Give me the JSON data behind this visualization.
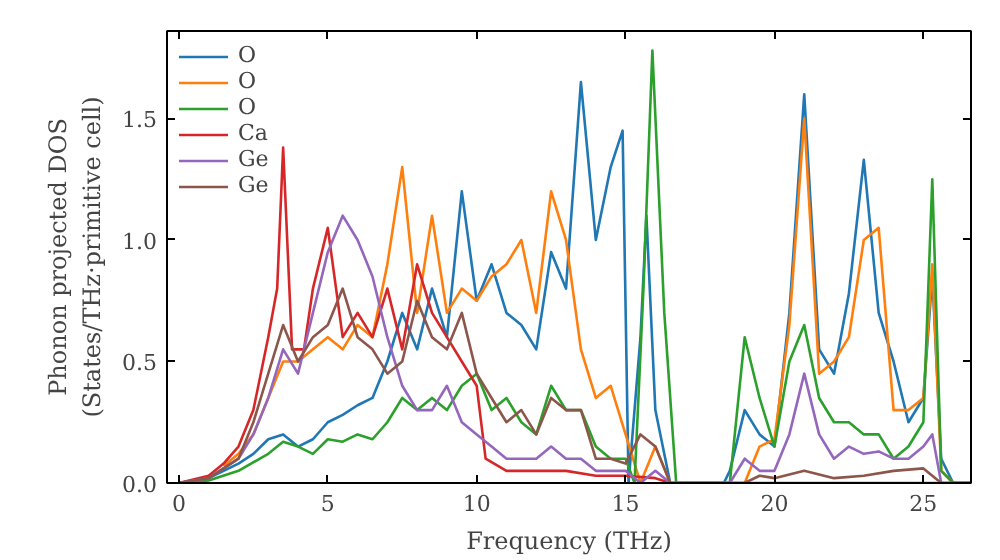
{
  "chart_data": {
    "type": "line",
    "xlabel": "Frequency (THz)",
    "ylabel": "Phonon projected DOS\n(States/THz·primitive cell)",
    "xlim": [
      -0.4,
      26.6
    ],
    "ylim": [
      0,
      1.86
    ],
    "xticks": [
      0,
      5,
      10,
      15,
      20,
      25
    ],
    "yticks": [
      {
        "value": 0,
        "label": "0.0"
      },
      {
        "value": 0.5,
        "label": "0.5"
      },
      {
        "value": 1,
        "label": "1.0"
      },
      {
        "value": 1.5,
        "label": "1.5"
      }
    ],
    "grid": false,
    "legend": "top left",
    "marker": "none",
    "line_style": "solid",
    "series": [
      {
        "name": "O",
        "color": "#1f77b4",
        "x": [
          0,
          1,
          2,
          2.5,
          3,
          3.5,
          4,
          4.5,
          5,
          5.5,
          6,
          6.5,
          7,
          7.5,
          8,
          8.5,
          9,
          9.5,
          10,
          10.5,
          11,
          11.5,
          12,
          12.5,
          13,
          13.5,
          14,
          14.5,
          14.9,
          15.1,
          15.5,
          15.7,
          16,
          16.5,
          18.3,
          18.5,
          19,
          19.5,
          20,
          20.5,
          21,
          21.5,
          22,
          22.5,
          23,
          23.5,
          24,
          24.5,
          25,
          25.3,
          25.6,
          26,
          26.6
        ],
        "values": [
          0,
          0.02,
          0.08,
          0.12,
          0.18,
          0.2,
          0.15,
          0.18,
          0.25,
          0.28,
          0.32,
          0.35,
          0.5,
          0.7,
          0.55,
          0.8,
          0.6,
          1.2,
          0.75,
          0.9,
          0.7,
          0.65,
          0.55,
          0.95,
          0.8,
          1.65,
          1.0,
          1.3,
          1.45,
          0,
          0.6,
          1.1,
          0.3,
          0,
          0,
          0.05,
          0.3,
          0.2,
          0.15,
          0.7,
          1.6,
          0.55,
          0.45,
          0.78,
          1.33,
          0.7,
          0.5,
          0.25,
          0.35,
          0.85,
          0.1,
          0,
          0
        ]
      },
      {
        "name": "O",
        "color": "#ff7f0e",
        "x": [
          1.5,
          2,
          2.5,
          3,
          3.5,
          4,
          4.5,
          5,
          5.5,
          6,
          6.5,
          7,
          7.5,
          8,
          8.5,
          9,
          9.5,
          10,
          10.5,
          11,
          11.5,
          12,
          12.5,
          13,
          13.5,
          14,
          14.5,
          15,
          15.5,
          16,
          16.5,
          19,
          19.5,
          20,
          20.5,
          21,
          21.5,
          22,
          22.5,
          23,
          23.5,
          24,
          24.5,
          25,
          25.3,
          25.6,
          26,
          26.6
        ],
        "values": [
          0.07,
          0.12,
          0.2,
          0.35,
          0.5,
          0.5,
          0.55,
          0.6,
          0.55,
          0.65,
          0.6,
          0.9,
          1.3,
          0.7,
          1.1,
          0.7,
          0.8,
          0.75,
          0.85,
          0.9,
          1.0,
          0.7,
          1.2,
          1.0,
          0.55,
          0.35,
          0.4,
          0.2,
          0,
          0.15,
          0,
          0,
          0.15,
          0.18,
          0.65,
          1.5,
          0.45,
          0.5,
          0.6,
          1.0,
          1.05,
          0.3,
          0.3,
          0.35,
          0.9,
          0.05,
          0,
          0
        ]
      },
      {
        "name": "O",
        "color": "#2ca02c",
        "x": [
          0,
          1,
          2,
          3,
          3.5,
          4,
          4.5,
          5,
          5.5,
          6,
          6.5,
          7,
          7.5,
          8,
          8.5,
          9,
          9.5,
          10,
          10.5,
          11,
          11.5,
          12,
          12.5,
          13,
          13.5,
          14,
          14.5,
          15,
          15.3,
          15.6,
          15.9,
          16.3,
          16.7,
          18.5,
          19,
          19.5,
          20,
          20.5,
          21,
          21.5,
          22,
          22.5,
          23,
          23.5,
          24,
          24.5,
          25,
          25.3,
          25.6,
          26,
          26.6
        ],
        "values": [
          0,
          0.01,
          0.05,
          0.12,
          0.17,
          0.15,
          0.12,
          0.18,
          0.17,
          0.2,
          0.18,
          0.25,
          0.35,
          0.3,
          0.35,
          0.3,
          0.4,
          0.45,
          0.3,
          0.35,
          0.25,
          0.2,
          0.4,
          0.3,
          0.3,
          0.15,
          0.1,
          0.1,
          0,
          0.8,
          1.78,
          0.7,
          0,
          0,
          0.6,
          0.35,
          0.15,
          0.5,
          0.65,
          0.35,
          0.25,
          0.25,
          0.2,
          0.2,
          0.1,
          0.15,
          0.25,
          1.25,
          0.05,
          0,
          0
        ]
      },
      {
        "name": "Ca",
        "color": "#d62728",
        "x": [
          0,
          1,
          1.5,
          2,
          2.5,
          3,
          3.3,
          3.5,
          3.8,
          4.2,
          4.5,
          5,
          5.5,
          6,
          6.5,
          7,
          7.5,
          8,
          8.5,
          9,
          9.5,
          10,
          10.3,
          11,
          12,
          13,
          14,
          15,
          16,
          16.5,
          26.6
        ],
        "values": [
          0,
          0.03,
          0.08,
          0.15,
          0.3,
          0.6,
          0.8,
          1.38,
          0.55,
          0.55,
          0.8,
          1.05,
          0.6,
          0.7,
          0.6,
          0.8,
          0.55,
          0.9,
          0.7,
          0.6,
          0.5,
          0.4,
          0.1,
          0.05,
          0.05,
          0.05,
          0.03,
          0.03,
          0.02,
          0,
          0
        ]
      },
      {
        "name": "Ge",
        "color": "#9467bd",
        "x": [
          0,
          1,
          2,
          2.5,
          3,
          3.5,
          4,
          4.5,
          5,
          5.5,
          6,
          6.5,
          7,
          7.5,
          8,
          8.5,
          9,
          9.5,
          10,
          10.5,
          11,
          12,
          12.5,
          13,
          13.5,
          14,
          15,
          15.5,
          16,
          16.5,
          18.5,
          19,
          19.5,
          20,
          20.5,
          21,
          21.5,
          22,
          22.5,
          23,
          23.5,
          24,
          24.5,
          25,
          25.3,
          25.6,
          26,
          26.6
        ],
        "values": [
          0,
          0.02,
          0.1,
          0.2,
          0.35,
          0.55,
          0.45,
          0.7,
          0.95,
          1.1,
          1.0,
          0.85,
          0.6,
          0.4,
          0.3,
          0.3,
          0.4,
          0.25,
          0.2,
          0.15,
          0.1,
          0.1,
          0.15,
          0.1,
          0.1,
          0.05,
          0.05,
          0,
          0.05,
          0,
          0,
          0.1,
          0.05,
          0.05,
          0.2,
          0.45,
          0.2,
          0.1,
          0.15,
          0.12,
          0.13,
          0.1,
          0.1,
          0.15,
          0.2,
          0,
          0,
          0
        ]
      },
      {
        "name": "Ge",
        "color": "#8c564b",
        "x": [
          0,
          1,
          2,
          2.5,
          3,
          3.5,
          4,
          4.5,
          5,
          5.5,
          6,
          6.5,
          7,
          7.5,
          8,
          8.5,
          9,
          9.5,
          10,
          10.5,
          11,
          11.5,
          12,
          12.5,
          13,
          13.5,
          14,
          14.5,
          15,
          15.5,
          16,
          16.5,
          19,
          19.5,
          20,
          21,
          22,
          23,
          24,
          25,
          25.6,
          26,
          26.6
        ],
        "values": [
          0,
          0.02,
          0.1,
          0.25,
          0.45,
          0.65,
          0.5,
          0.6,
          0.65,
          0.8,
          0.6,
          0.55,
          0.45,
          0.5,
          0.75,
          0.6,
          0.55,
          0.7,
          0.45,
          0.35,
          0.25,
          0.3,
          0.2,
          0.35,
          0.3,
          0.3,
          0.1,
          0.1,
          0.08,
          0.2,
          0.15,
          0,
          0,
          0.03,
          0.02,
          0.05,
          0.02,
          0.03,
          0.05,
          0.06,
          0,
          0,
          0
        ]
      }
    ]
  }
}
